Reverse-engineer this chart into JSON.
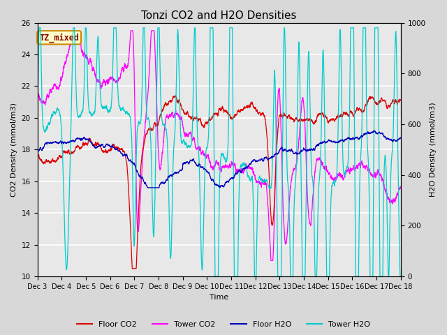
{
  "title": "Tonzi CO2 and H2O Densities",
  "xlabel": "Time",
  "ylabel_left": "CO2 Density (mmol/m3)",
  "ylabel_right": "H2O Density (mmol/m3)",
  "ylim_left": [
    10,
    26
  ],
  "ylim_right": [
    0,
    1000
  ],
  "annotation_text": "TZ_mixed",
  "annotation_color": "#8b0000",
  "annotation_bg": "#ffffcc",
  "annotation_border": "#cc8800",
  "fig_facecolor": "#d8d8d8",
  "plot_facecolor": "#e8e8e8",
  "colors": {
    "floor_co2": "#dd0000",
    "tower_co2": "#ff00ff",
    "floor_h2o": "#0000bb",
    "tower_h2o": "#00cccc"
  },
  "legend_labels": [
    "Floor CO2",
    "Tower CO2",
    "Floor H2O",
    "Tower H2O"
  ],
  "xtick_labels": [
    "Dec 3",
    "Dec 4",
    "Dec 5",
    "Dec 6",
    "Dec 7",
    "Dec 8",
    "Dec 9",
    "Dec 10",
    "Dec 11",
    "Dec 12",
    "Dec 13",
    "Dec 14",
    "Dec 15",
    "Dec 16",
    "Dec 17",
    "Dec 18"
  ],
  "grid_color": "#ffffff",
  "title_fontsize": 11,
  "axis_fontsize": 8,
  "tick_fontsize": 7.5
}
